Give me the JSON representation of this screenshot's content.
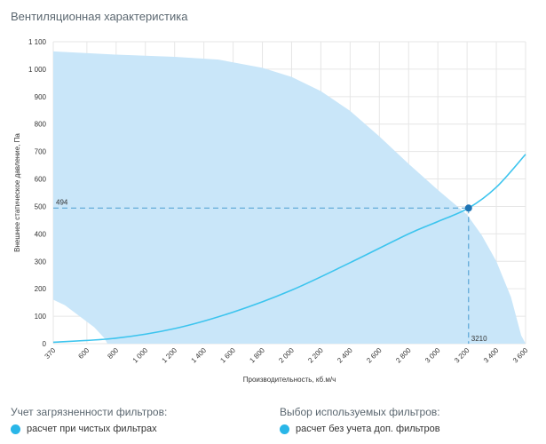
{
  "page": {
    "title": "Вентиляционная характеристика"
  },
  "filters": {
    "contamination_label": "Учет загрязненности фильтров:",
    "contamination_option": "расчет при чистых фильтрах",
    "selection_label": "Выбор используемых фильтров:",
    "selection_option": "расчет без учета доп. фильтров"
  },
  "colors": {
    "area_fill": "#c9e6f9",
    "curve": "#3cc4ee",
    "marker": "#1f74b4",
    "guide": "#5aa6d6",
    "grid": "#e6e6e6"
  },
  "chart_data": {
    "type": "area",
    "xlabel": "Производительность, кб.м/ч",
    "ylabel": "Внешнее статическое давление, Па",
    "xlim": [
      370,
      3600
    ],
    "ylim": [
      0,
      1100
    ],
    "x_ticks": [
      "370",
      "600",
      "800",
      "1 000",
      "1 200",
      "1 400",
      "1 600",
      "1 800",
      "2 000",
      "2 200",
      "2 400",
      "2 600",
      "2 800",
      "3 000",
      "3 200",
      "3 400",
      "3 600"
    ],
    "x_tick_values": [
      370,
      600,
      800,
      1000,
      1200,
      1400,
      1600,
      1800,
      2000,
      2200,
      2400,
      2600,
      2800,
      3000,
      3200,
      3400,
      3600
    ],
    "y_ticks": [
      "0",
      "100",
      "200",
      "300",
      "400",
      "500",
      "600",
      "700",
      "800",
      "900",
      "1 000",
      "1 100"
    ],
    "y_tick_values": [
      0,
      100,
      200,
      300,
      400,
      500,
      600,
      700,
      800,
      900,
      1000,
      1100
    ],
    "grid": true,
    "series": [
      {
        "kind": "operating_area_upper",
        "points": [
          [
            370,
            1065
          ],
          [
            800,
            1053
          ],
          [
            1200,
            1045
          ],
          [
            1500,
            1035
          ],
          [
            1800,
            1005
          ],
          [
            2000,
            972
          ],
          [
            2200,
            920
          ],
          [
            2400,
            848
          ],
          [
            2600,
            755
          ],
          [
            2800,
            655
          ],
          [
            3000,
            560
          ],
          [
            3200,
            470
          ],
          [
            3300,
            395
          ],
          [
            3400,
            300
          ],
          [
            3500,
            170
          ],
          [
            3570,
            30
          ],
          [
            3600,
            0
          ]
        ]
      },
      {
        "kind": "operating_area_lower",
        "points": [
          [
            370,
            160
          ],
          [
            450,
            140
          ],
          [
            550,
            100
          ],
          [
            650,
            60
          ],
          [
            720,
            20
          ],
          [
            740,
            0
          ]
        ]
      },
      {
        "kind": "system_curve",
        "points": [
          [
            370,
            5
          ],
          [
            800,
            20
          ],
          [
            1200,
            55
          ],
          [
            1600,
            115
          ],
          [
            2000,
            195
          ],
          [
            2400,
            295
          ],
          [
            2800,
            400
          ],
          [
            3000,
            445
          ],
          [
            3210,
            494
          ],
          [
            3400,
            570
          ],
          [
            3600,
            690
          ]
        ]
      }
    ],
    "operating_point": {
      "x": 3210,
      "y": 494
    },
    "operating_point_labels": {
      "x_label": "3210",
      "y_label": "494"
    }
  }
}
